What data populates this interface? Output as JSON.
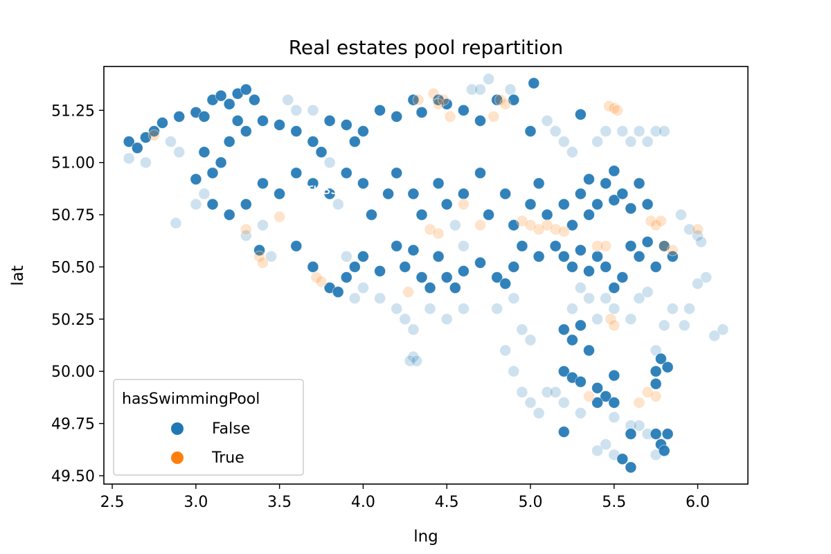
{
  "chart_data": {
    "type": "scatter",
    "title": "Real estates pool repartition",
    "xlabel": "lng",
    "ylabel": "lat",
    "xlim": [
      2.45,
      6.3
    ],
    "ylim": [
      49.46,
      51.46
    ],
    "x_ticks": [
      "2.5",
      "3.0",
      "3.5",
      "4.0",
      "4.5",
      "5.0",
      "5.5",
      "6.0"
    ],
    "y_ticks": [
      "49.50",
      "49.75",
      "50.00",
      "50.25",
      "50.50",
      "50.75",
      "51.00",
      "51.25"
    ],
    "grid": false,
    "legend": {
      "title": "hasSwimmingPool",
      "placement": "lower-left",
      "entries": [
        "False",
        "True"
      ]
    },
    "annotation": {
      "text": "Brussels",
      "x": 3.6,
      "y": 50.85
    },
    "colors": {
      "False": "#1f77b4",
      "True": "#ff7f0e"
    },
    "series": [
      {
        "name": "False",
        "strong": [
          [
            2.6,
            51.1
          ],
          [
            2.65,
            51.07
          ],
          [
            2.7,
            51.12
          ],
          [
            2.75,
            51.15
          ],
          [
            2.8,
            51.19
          ],
          [
            2.9,
            51.22
          ],
          [
            3.0,
            51.24
          ],
          [
            3.05,
            51.22
          ],
          [
            3.1,
            51.3
          ],
          [
            3.15,
            51.32
          ],
          [
            3.2,
            51.28
          ],
          [
            3.25,
            51.33
          ],
          [
            3.3,
            51.35
          ],
          [
            3.35,
            51.3
          ],
          [
            3.0,
            50.92
          ],
          [
            3.05,
            51.05
          ],
          [
            3.1,
            50.95
          ],
          [
            3.15,
            51.0
          ],
          [
            3.2,
            51.1
          ],
          [
            3.25,
            51.2
          ],
          [
            3.3,
            51.15
          ],
          [
            3.4,
            51.2
          ],
          [
            3.5,
            51.18
          ],
          [
            3.6,
            51.15
          ],
          [
            3.7,
            51.1
          ],
          [
            3.75,
            51.05
          ],
          [
            3.8,
            51.2
          ],
          [
            3.9,
            51.18
          ],
          [
            3.95,
            51.1
          ],
          [
            4.0,
            51.15
          ],
          [
            4.1,
            51.25
          ],
          [
            4.2,
            51.22
          ],
          [
            4.3,
            51.3
          ],
          [
            4.35,
            51.24
          ],
          [
            4.45,
            51.3
          ],
          [
            4.5,
            51.28
          ],
          [
            4.6,
            51.25
          ],
          [
            4.7,
            51.2
          ],
          [
            4.8,
            51.3
          ],
          [
            4.9,
            51.3
          ],
          [
            5.0,
            51.15
          ],
          [
            5.02,
            51.38
          ],
          [
            5.3,
            51.23
          ],
          [
            3.1,
            50.8
          ],
          [
            3.2,
            50.75
          ],
          [
            3.3,
            50.8
          ],
          [
            3.4,
            50.9
          ],
          [
            3.5,
            50.85
          ],
          [
            3.6,
            50.95
          ],
          [
            3.7,
            50.9
          ],
          [
            3.8,
            50.85
          ],
          [
            3.9,
            50.95
          ],
          [
            4.0,
            50.9
          ],
          [
            4.05,
            50.75
          ],
          [
            4.15,
            50.85
          ],
          [
            4.2,
            50.95
          ],
          [
            4.3,
            50.85
          ],
          [
            4.35,
            50.75
          ],
          [
            4.45,
            50.9
          ],
          [
            4.5,
            50.8
          ],
          [
            4.6,
            50.85
          ],
          [
            4.7,
            50.95
          ],
          [
            4.75,
            50.75
          ],
          [
            4.85,
            50.85
          ],
          [
            4.9,
            50.7
          ],
          [
            5.0,
            50.8
          ],
          [
            5.05,
            50.9
          ],
          [
            5.1,
            50.75
          ],
          [
            5.2,
            50.8
          ],
          [
            5.25,
            50.7
          ],
          [
            5.3,
            50.85
          ],
          [
            5.35,
            50.75
          ],
          [
            5.4,
            50.8
          ],
          [
            5.45,
            50.9
          ],
          [
            5.5,
            50.82
          ],
          [
            5.55,
            50.85
          ],
          [
            5.6,
            50.78
          ],
          [
            5.65,
            50.9
          ],
          [
            5.7,
            50.8
          ],
          [
            5.5,
            50.96
          ],
          [
            5.35,
            50.92
          ],
          [
            3.38,
            50.58
          ],
          [
            3.6,
            50.6
          ],
          [
            3.7,
            50.5
          ],
          [
            3.8,
            50.4
          ],
          [
            3.85,
            50.38
          ],
          [
            3.9,
            50.45
          ],
          [
            3.95,
            50.5
          ],
          [
            4.0,
            50.55
          ],
          [
            4.1,
            50.48
          ],
          [
            4.2,
            50.6
          ],
          [
            4.25,
            50.5
          ],
          [
            4.3,
            50.58
          ],
          [
            4.35,
            50.45
          ],
          [
            4.4,
            50.4
          ],
          [
            4.45,
            50.55
          ],
          [
            4.5,
            50.45
          ],
          [
            4.55,
            50.4
          ],
          [
            4.6,
            50.48
          ],
          [
            4.7,
            50.52
          ],
          [
            4.8,
            50.45
          ],
          [
            4.85,
            50.42
          ],
          [
            4.9,
            50.5
          ],
          [
            4.95,
            50.6
          ],
          [
            5.05,
            50.55
          ],
          [
            5.15,
            50.6
          ],
          [
            5.2,
            50.55
          ],
          [
            5.25,
            50.5
          ],
          [
            5.3,
            50.58
          ],
          [
            5.35,
            50.48
          ],
          [
            5.4,
            50.55
          ],
          [
            5.45,
            50.5
          ],
          [
            5.5,
            50.4
          ],
          [
            5.55,
            50.45
          ],
          [
            5.6,
            50.6
          ],
          [
            5.65,
            50.55
          ],
          [
            5.7,
            50.62
          ],
          [
            5.75,
            50.5
          ],
          [
            5.8,
            50.6
          ],
          [
            5.85,
            50.55
          ],
          [
            5.2,
            50.2
          ],
          [
            5.25,
            50.15
          ],
          [
            5.3,
            50.22
          ],
          [
            5.35,
            50.1
          ],
          [
            5.2,
            50.0
          ],
          [
            5.25,
            49.97
          ],
          [
            5.3,
            49.95
          ],
          [
            5.4,
            49.92
          ],
          [
            5.45,
            49.88
          ],
          [
            5.5,
            49.98
          ],
          [
            5.4,
            49.85
          ],
          [
            5.5,
            49.85
          ],
          [
            5.75,
            50.0
          ],
          [
            5.78,
            50.06
          ],
          [
            5.82,
            50.02
          ],
          [
            5.75,
            49.94
          ],
          [
            5.6,
            49.7
          ],
          [
            5.55,
            49.58
          ],
          [
            5.6,
            49.54
          ],
          [
            5.75,
            49.7
          ],
          [
            5.78,
            49.65
          ],
          [
            5.82,
            49.7
          ],
          [
            5.8,
            49.62
          ],
          [
            5.2,
            49.71
          ]
        ],
        "faint": [
          [
            2.6,
            51.02
          ],
          [
            2.7,
            51.0
          ],
          [
            2.85,
            51.1
          ],
          [
            2.9,
            51.05
          ],
          [
            2.88,
            50.71
          ],
          [
            3.0,
            50.8
          ],
          [
            3.05,
            50.85
          ],
          [
            3.3,
            50.65
          ],
          [
            3.4,
            50.7
          ],
          [
            3.45,
            50.55
          ],
          [
            3.55,
            51.3
          ],
          [
            3.6,
            51.25
          ],
          [
            3.7,
            51.25
          ],
          [
            3.8,
            51.0
          ],
          [
            3.85,
            50.8
          ],
          [
            3.9,
            50.55
          ],
          [
            3.95,
            50.35
          ],
          [
            4.0,
            50.4
          ],
          [
            4.1,
            50.35
          ],
          [
            4.2,
            50.3
          ],
          [
            4.25,
            50.25
          ],
          [
            4.3,
            50.2
          ],
          [
            4.3,
            50.07
          ],
          [
            4.28,
            50.05
          ],
          [
            4.32,
            50.05
          ],
          [
            4.4,
            50.3
          ],
          [
            4.5,
            50.25
          ],
          [
            4.6,
            50.3
          ],
          [
            4.65,
            51.35
          ],
          [
            4.7,
            51.35
          ],
          [
            4.75,
            51.4
          ],
          [
            4.88,
            51.35
          ],
          [
            4.8,
            50.3
          ],
          [
            4.85,
            50.1
          ],
          [
            4.9,
            50.0
          ],
          [
            4.95,
            49.9
          ],
          [
            5.0,
            49.85
          ],
          [
            5.05,
            49.8
          ],
          [
            5.1,
            49.9
          ],
          [
            5.1,
            51.2
          ],
          [
            5.15,
            51.15
          ],
          [
            5.2,
            51.1
          ],
          [
            5.25,
            51.05
          ],
          [
            5.4,
            51.1
          ],
          [
            5.45,
            51.15
          ],
          [
            5.55,
            51.15
          ],
          [
            5.6,
            51.1
          ],
          [
            5.65,
            51.15
          ],
          [
            5.7,
            51.1
          ],
          [
            5.75,
            51.15
          ],
          [
            5.8,
            51.15
          ],
          [
            5.5,
            50.3
          ],
          [
            5.45,
            50.35
          ],
          [
            5.4,
            50.25
          ],
          [
            5.35,
            50.35
          ],
          [
            5.3,
            50.4
          ],
          [
            5.25,
            50.3
          ],
          [
            5.6,
            50.25
          ],
          [
            5.65,
            50.35
          ],
          [
            5.7,
            50.38
          ],
          [
            5.75,
            50.1
          ],
          [
            5.8,
            50.22
          ],
          [
            5.85,
            50.3
          ],
          [
            5.9,
            50.75
          ],
          [
            5.95,
            50.68
          ],
          [
            6.0,
            50.65
          ],
          [
            6.02,
            50.62
          ],
          [
            6.05,
            50.45
          ],
          [
            6.0,
            50.42
          ],
          [
            5.95,
            50.3
          ],
          [
            5.92,
            50.22
          ],
          [
            6.1,
            50.17
          ],
          [
            6.15,
            50.2
          ],
          [
            5.5,
            49.6
          ],
          [
            5.45,
            49.65
          ],
          [
            5.4,
            49.62
          ],
          [
            5.5,
            49.78
          ],
          [
            5.6,
            49.74
          ],
          [
            5.65,
            49.74
          ],
          [
            5.7,
            49.7
          ],
          [
            5.75,
            49.6
          ],
          [
            5.3,
            49.8
          ],
          [
            5.2,
            49.85
          ],
          [
            5.15,
            49.9
          ],
          [
            4.95,
            50.2
          ],
          [
            5.0,
            50.15
          ],
          [
            4.9,
            50.35
          ],
          [
            4.6,
            50.6
          ],
          [
            4.55,
            50.7
          ]
        ]
      },
      {
        "name": "True",
        "strong": [],
        "faint": [
          [
            2.75,
            51.13
          ],
          [
            3.3,
            50.68
          ],
          [
            3.38,
            50.55
          ],
          [
            3.4,
            50.52
          ],
          [
            3.5,
            50.74
          ],
          [
            3.72,
            50.45
          ],
          [
            3.75,
            50.43
          ],
          [
            4.27,
            50.38
          ],
          [
            4.33,
            51.3
          ],
          [
            4.42,
            51.33
          ],
          [
            4.45,
            51.28
          ],
          [
            4.48,
            51.3
          ],
          [
            4.52,
            51.22
          ],
          [
            4.4,
            50.68
          ],
          [
            4.45,
            50.66
          ],
          [
            4.6,
            50.8
          ],
          [
            4.7,
            50.7
          ],
          [
            4.78,
            51.22
          ],
          [
            4.82,
            51.3
          ],
          [
            4.85,
            51.28
          ],
          [
            4.95,
            50.72
          ],
          [
            5.0,
            50.7
          ],
          [
            5.05,
            50.68
          ],
          [
            5.1,
            50.7
          ],
          [
            5.15,
            50.68
          ],
          [
            5.2,
            50.67
          ],
          [
            5.35,
            49.88
          ],
          [
            5.4,
            50.6
          ],
          [
            5.45,
            50.6
          ],
          [
            5.47,
            51.27
          ],
          [
            5.5,
            51.26
          ],
          [
            5.52,
            51.25
          ],
          [
            5.48,
            50.25
          ],
          [
            5.5,
            50.22
          ],
          [
            5.72,
            50.72
          ],
          [
            5.75,
            50.7
          ],
          [
            5.78,
            50.72
          ],
          [
            5.8,
            50.6
          ],
          [
            5.85,
            50.58
          ],
          [
            5.7,
            49.9
          ],
          [
            5.65,
            49.85
          ],
          [
            5.75,
            49.88
          ],
          [
            6.0,
            50.68
          ]
        ]
      }
    ]
  }
}
